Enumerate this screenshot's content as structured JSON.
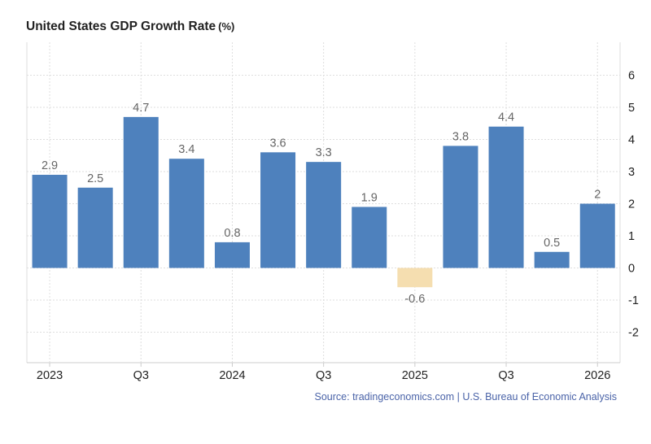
{
  "chart": {
    "title": "United States GDP Growth Rate",
    "title_unit": "(%)",
    "source": "Source: tradingeconomics.com | U.S. Bureau of Economic Analysis"
  },
  "colors": {
    "positive_bar": "#4e81bd",
    "negative_bar": "#f5deb0",
    "grid": "#dedede",
    "label": "#666666",
    "tick": "#222222"
  },
  "chart_data": {
    "type": "bar",
    "categories": [
      "2023 Q1",
      "2023 Q2",
      "2023 Q3",
      "2023 Q4",
      "2024 Q1",
      "2024 Q2",
      "2024 Q3",
      "2024 Q4",
      "2025 Q1",
      "2025 Q2",
      "2025 Q3",
      "2025 Q4",
      "2026 Q1"
    ],
    "values": [
      2.9,
      2.5,
      4.7,
      3.4,
      0.8,
      3.6,
      3.3,
      1.9,
      -0.6,
      3.8,
      4.4,
      0.5,
      2
    ],
    "value_labels": [
      "2.9",
      "2.5",
      "4.7",
      "3.4",
      "0.8",
      "3.6",
      "3.3",
      "1.9",
      "-0.6",
      "3.8",
      "4.4",
      "0.5",
      "2"
    ],
    "x_tick_labels": [
      {
        "index": 0,
        "label": "2023"
      },
      {
        "index": 2,
        "label": "Q3"
      },
      {
        "index": 4,
        "label": "2024"
      },
      {
        "index": 6,
        "label": "Q3"
      },
      {
        "index": 8,
        "label": "2025"
      },
      {
        "index": 10,
        "label": "Q3"
      },
      {
        "index": 12,
        "label": "2026"
      }
    ],
    "y_ticks": [
      6,
      5,
      4,
      3,
      2,
      1,
      0,
      -1,
      -2
    ],
    "ylim": [
      -3,
      7
    ],
    "y_axis_side": "right",
    "grid": true,
    "legend": "none"
  }
}
